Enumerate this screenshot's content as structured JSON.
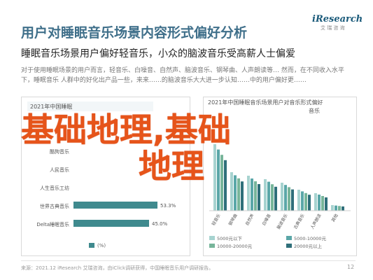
{
  "header": {
    "title": "用户对睡眠音乐场景内容形式偏好分析",
    "logo_text": "iResearch",
    "logo_sub": "艾 瑞 咨 询",
    "subtitle": "睡眠音乐场景用户偏好轻音乐，小众的脑波音乐受高薪人士偏爱",
    "description": "对于使用睡眠场景的用户而言，轻音乐、白噪音、自然声、脑波音乐、钢琴曲、人声朗读等… 然而，在不同收入水平下，睡眠音乐 人群中的好化出产品一些，来来……的脑波音乐大大进一步认知……中的用户偏好更……"
  },
  "overlay": {
    "line1": "基础地理,基础",
    "line2": "地理"
  },
  "left_chart": {
    "header_text": "2021年中国睡眠",
    "chart_data": {
      "type": "bar",
      "categories": [
        "酷狗音乐",
        "人民音乐",
        "人生音乐工坊",
        "世界古典音乐",
        "Delta睡眠音乐"
      ],
      "values": [
        null,
        null,
        null,
        53.3,
        45.0
      ],
      "labels": [
        "",
        "",
        "",
        "53.3%",
        "45.0%"
      ],
      "xlabel": "",
      "ylabel": "",
      "legend": [
        "(%)"
      ]
    }
  },
  "right_chart": {
    "header_text": "2021年中国睡眠音乐场景用户对音乐形式偏好",
    "header_line2": "音乐",
    "chart_data": {
      "type": "bar",
      "categories": [
        "轻音乐",
        "钢琴曲",
        "自然声",
        "白噪音",
        "脑波音乐",
        "古典音乐",
        "人声朗读",
        "其他"
      ],
      "series": [
        {
          "name": "5000元以下",
          "values": [
            null,
            null,
            null,
            null,
            null,
            null,
            null,
            null
          ]
        },
        {
          "name": "5000-10000元",
          "values": [
            null,
            null,
            null,
            null,
            null,
            null,
            null,
            null
          ]
        },
        {
          "name": "10000-20000元",
          "values": [
            null,
            null,
            null,
            null,
            null,
            null,
            null,
            null
          ]
        },
        {
          "name": "20000元以上",
          "values": [
            null,
            null,
            null,
            null,
            null,
            null,
            null,
            null
          ]
        }
      ]
    }
  },
  "footer": {
    "note": "来源：2021.12 iResearch 艾瑞咨询，由iClick调研获得，中国睡眠音乐用户调研报告。",
    "page": "12",
    "right_note": "©2021.12 iResearch Inc.",
    "right_source": "www.iresearch.com.cn"
  },
  "colors": {
    "title": "#3f6f8a",
    "bar_teal": "#5aa7a8",
    "bar_light": "#a7d3d0",
    "bar_dark": "#2f6f7a",
    "bar_green": "#77b59a",
    "overlay": "#e6541a"
  }
}
